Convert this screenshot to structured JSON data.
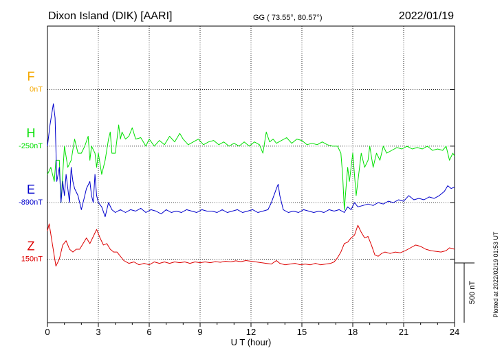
{
  "header": {
    "station": "Dixon Island (DIK)  [AARI]",
    "coords": "GG ( 73.55°,  80.57°)",
    "date": "2022/01/19"
  },
  "plotted_note": "Plotted at 2022/02/19 01:53 UT",
  "colors": {
    "F": "#f5a800",
    "H": "#00e000",
    "E": "#0000cc",
    "Z": "#dd0000",
    "axes": "#000000"
  },
  "chart_data": {
    "type": "line",
    "xlabel": "U T (hour)",
    "xlim": [
      0,
      24
    ],
    "xticks": [
      "0",
      "3",
      "6",
      "9",
      "12",
      "15",
      "18",
      "21",
      "24"
    ],
    "ylim_nT": [
      0,
      2100
    ],
    "scale_bar": {
      "value": 500,
      "label": "500 nT"
    },
    "series": [
      {
        "name": "F",
        "baseline_label": "0nT",
        "baseline_nT": 1650,
        "points": []
      },
      {
        "name": "H",
        "baseline_label": "-250nT",
        "baseline_nT": 1250,
        "points": [
          [
            0,
            1050
          ],
          [
            0.2,
            1100
          ],
          [
            0.4,
            1000
          ],
          [
            0.5,
            1150
          ],
          [
            0.7,
            1150
          ],
          [
            0.8,
            850
          ],
          [
            1.0,
            1250
          ],
          [
            1.2,
            1100
          ],
          [
            1.4,
            1150
          ],
          [
            1.6,
            1300
          ],
          [
            1.8,
            1200
          ],
          [
            2.0,
            1200
          ],
          [
            2.2,
            1250
          ],
          [
            2.4,
            1320
          ],
          [
            2.5,
            1150
          ],
          [
            2.6,
            1250
          ],
          [
            2.8,
            1200
          ],
          [
            2.9,
            1100
          ],
          [
            3.0,
            1200
          ],
          [
            3.2,
            1050
          ],
          [
            3.4,
            1150
          ],
          [
            3.6,
            1300
          ],
          [
            3.7,
            1350
          ],
          [
            3.8,
            1200
          ],
          [
            4.0,
            1200
          ],
          [
            4.2,
            1400
          ],
          [
            4.3,
            1300
          ],
          [
            4.4,
            1350
          ],
          [
            4.6,
            1300
          ],
          [
            4.8,
            1320
          ],
          [
            5.0,
            1380
          ],
          [
            5.2,
            1300
          ],
          [
            5.5,
            1310
          ],
          [
            5.8,
            1250
          ],
          [
            6.0,
            1300
          ],
          [
            6.3,
            1250
          ],
          [
            6.6,
            1290
          ],
          [
            6.9,
            1260
          ],
          [
            7.2,
            1320
          ],
          [
            7.5,
            1280
          ],
          [
            7.8,
            1340
          ],
          [
            8.0,
            1300
          ],
          [
            8.3,
            1260
          ],
          [
            8.6,
            1280
          ],
          [
            8.9,
            1300
          ],
          [
            9.2,
            1260
          ],
          [
            9.5,
            1280
          ],
          [
            9.8,
            1290
          ],
          [
            10.1,
            1260
          ],
          [
            10.4,
            1280
          ],
          [
            10.7,
            1250
          ],
          [
            11.0,
            1270
          ],
          [
            11.3,
            1250
          ],
          [
            11.6,
            1280
          ],
          [
            11.9,
            1250
          ],
          [
            12.2,
            1280
          ],
          [
            12.5,
            1260
          ],
          [
            12.7,
            1200
          ],
          [
            12.9,
            1350
          ],
          [
            13.1,
            1280
          ],
          [
            13.3,
            1300
          ],
          [
            13.5,
            1270
          ],
          [
            13.8,
            1290
          ],
          [
            14.1,
            1310
          ],
          [
            14.4,
            1270
          ],
          [
            14.7,
            1300
          ],
          [
            15.0,
            1290
          ],
          [
            15.3,
            1260
          ],
          [
            15.6,
            1270
          ],
          [
            15.9,
            1260
          ],
          [
            16.2,
            1280
          ],
          [
            16.5,
            1260
          ],
          [
            16.8,
            1250
          ],
          [
            17.1,
            1250
          ],
          [
            17.3,
            1200
          ],
          [
            17.4,
            1050
          ],
          [
            17.5,
            800
          ],
          [
            17.6,
            950
          ],
          [
            17.7,
            1100
          ],
          [
            17.8,
            1000
          ],
          [
            18.0,
            1200
          ],
          [
            18.2,
            900
          ],
          [
            18.3,
            1000
          ],
          [
            18.5,
            1200
          ],
          [
            18.7,
            1100
          ],
          [
            18.9,
            1150
          ],
          [
            19.0,
            1250
          ],
          [
            19.2,
            1100
          ],
          [
            19.4,
            1200
          ],
          [
            19.6,
            1150
          ],
          [
            19.8,
            1250
          ],
          [
            20.0,
            1200
          ],
          [
            20.3,
            1220
          ],
          [
            20.6,
            1240
          ],
          [
            20.9,
            1230
          ],
          [
            21.2,
            1250
          ],
          [
            21.5,
            1230
          ],
          [
            21.8,
            1240
          ],
          [
            22.1,
            1230
          ],
          [
            22.4,
            1250
          ],
          [
            22.7,
            1220
          ],
          [
            23.0,
            1230
          ],
          [
            23.3,
            1220
          ],
          [
            23.5,
            1250
          ],
          [
            23.7,
            1150
          ],
          [
            23.9,
            1200
          ],
          [
            24.0,
            1180
          ]
        ]
      },
      {
        "name": "E",
        "baseline_label": "-890nT",
        "baseline_nT": 850,
        "points": [
          [
            0,
            1250
          ],
          [
            0.15,
            1400
          ],
          [
            0.35,
            1550
          ],
          [
            0.45,
            1450
          ],
          [
            0.55,
            1000
          ],
          [
            0.7,
            1100
          ],
          [
            0.8,
            850
          ],
          [
            0.9,
            1000
          ],
          [
            1.0,
            900
          ],
          [
            1.1,
            1050
          ],
          [
            1.2,
            950
          ],
          [
            1.3,
            850
          ],
          [
            1.4,
            1100
          ],
          [
            1.5,
            1000
          ],
          [
            1.6,
            950
          ],
          [
            1.8,
            900
          ],
          [
            2.0,
            800
          ],
          [
            2.2,
            900
          ],
          [
            2.3,
            950
          ],
          [
            2.5,
            1000
          ],
          [
            2.6,
            900
          ],
          [
            2.7,
            850
          ],
          [
            2.8,
            1050
          ],
          [
            2.9,
            900
          ],
          [
            3.0,
            850
          ],
          [
            3.2,
            820
          ],
          [
            3.4,
            750
          ],
          [
            3.6,
            850
          ],
          [
            3.8,
            800
          ],
          [
            4.0,
            780
          ],
          [
            4.3,
            800
          ],
          [
            4.6,
            780
          ],
          [
            4.9,
            800
          ],
          [
            5.2,
            790
          ],
          [
            5.5,
            810
          ],
          [
            5.8,
            780
          ],
          [
            6.1,
            800
          ],
          [
            6.4,
            790
          ],
          [
            6.7,
            770
          ],
          [
            7.0,
            800
          ],
          [
            7.3,
            780
          ],
          [
            7.6,
            790
          ],
          [
            7.9,
            780
          ],
          [
            8.2,
            800
          ],
          [
            8.5,
            790
          ],
          [
            8.8,
            780
          ],
          [
            9.1,
            800
          ],
          [
            9.4,
            790
          ],
          [
            9.7,
            790
          ],
          [
            10.0,
            780
          ],
          [
            10.3,
            800
          ],
          [
            10.6,
            780
          ],
          [
            10.9,
            790
          ],
          [
            11.2,
            800
          ],
          [
            11.5,
            780
          ],
          [
            11.8,
            790
          ],
          [
            12.1,
            800
          ],
          [
            12.4,
            780
          ],
          [
            12.7,
            790
          ],
          [
            13.0,
            800
          ],
          [
            13.2,
            850
          ],
          [
            13.5,
            950
          ],
          [
            13.6,
            980
          ],
          [
            13.7,
            900
          ],
          [
            13.9,
            800
          ],
          [
            14.2,
            780
          ],
          [
            14.5,
            790
          ],
          [
            14.8,
            780
          ],
          [
            15.1,
            800
          ],
          [
            15.4,
            790
          ],
          [
            15.7,
            780
          ],
          [
            16.0,
            790
          ],
          [
            16.3,
            780
          ],
          [
            16.6,
            800
          ],
          [
            16.9,
            790
          ],
          [
            17.2,
            800
          ],
          [
            17.5,
            780
          ],
          [
            17.7,
            820
          ],
          [
            17.9,
            800
          ],
          [
            18.1,
            850
          ],
          [
            18.3,
            820
          ],
          [
            18.6,
            830
          ],
          [
            18.9,
            840
          ],
          [
            19.2,
            830
          ],
          [
            19.5,
            850
          ],
          [
            19.8,
            840
          ],
          [
            20.1,
            860
          ],
          [
            20.4,
            850
          ],
          [
            20.7,
            870
          ],
          [
            21.0,
            860
          ],
          [
            21.3,
            900
          ],
          [
            21.6,
            870
          ],
          [
            21.9,
            880
          ],
          [
            22.2,
            870
          ],
          [
            22.5,
            890
          ],
          [
            22.8,
            880
          ],
          [
            23.1,
            900
          ],
          [
            23.4,
            930
          ],
          [
            23.6,
            970
          ],
          [
            23.8,
            950
          ],
          [
            24.0,
            960
          ]
        ]
      },
      {
        "name": "Z",
        "baseline_label": "150nT",
        "baseline_nT": 450,
        "points": [
          [
            0,
            650
          ],
          [
            0.1,
            700
          ],
          [
            0.3,
            550
          ],
          [
            0.5,
            400
          ],
          [
            0.7,
            450
          ],
          [
            0.9,
            550
          ],
          [
            1.1,
            580
          ],
          [
            1.3,
            520
          ],
          [
            1.5,
            500
          ],
          [
            1.7,
            520
          ],
          [
            1.9,
            520
          ],
          [
            2.1,
            560
          ],
          [
            2.3,
            600
          ],
          [
            2.5,
            560
          ],
          [
            2.7,
            610
          ],
          [
            2.9,
            660
          ],
          [
            3.1,
            600
          ],
          [
            3.3,
            550
          ],
          [
            3.5,
            560
          ],
          [
            3.7,
            520
          ],
          [
            3.9,
            500
          ],
          [
            4.1,
            500
          ],
          [
            4.3,
            470
          ],
          [
            4.5,
            440
          ],
          [
            4.8,
            420
          ],
          [
            5.1,
            430
          ],
          [
            5.4,
            410
          ],
          [
            5.7,
            420
          ],
          [
            6.0,
            410
          ],
          [
            6.3,
            430
          ],
          [
            6.6,
            420
          ],
          [
            6.9,
            430
          ],
          [
            7.2,
            420
          ],
          [
            7.5,
            430
          ],
          [
            7.8,
            425
          ],
          [
            8.1,
            430
          ],
          [
            8.4,
            420
          ],
          [
            8.7,
            430
          ],
          [
            9.0,
            425
          ],
          [
            9.3,
            430
          ],
          [
            9.6,
            425
          ],
          [
            9.9,
            432
          ],
          [
            10.2,
            428
          ],
          [
            10.5,
            435
          ],
          [
            10.8,
            430
          ],
          [
            11.1,
            438
          ],
          [
            11.4,
            432
          ],
          [
            11.7,
            440
          ],
          [
            12.0,
            435
          ],
          [
            12.3,
            430
          ],
          [
            12.6,
            425
          ],
          [
            12.9,
            420
          ],
          [
            13.2,
            415
          ],
          [
            13.5,
            440
          ],
          [
            13.7,
            420
          ],
          [
            14.0,
            410
          ],
          [
            14.3,
            415
          ],
          [
            14.6,
            420
          ],
          [
            14.9,
            410
          ],
          [
            15.2,
            415
          ],
          [
            15.5,
            410
          ],
          [
            15.8,
            420
          ],
          [
            16.1,
            410
          ],
          [
            16.4,
            415
          ],
          [
            16.7,
            420
          ],
          [
            16.9,
            430
          ],
          [
            17.1,
            460
          ],
          [
            17.3,
            500
          ],
          [
            17.5,
            560
          ],
          [
            17.7,
            570
          ],
          [
            17.9,
            600
          ],
          [
            18.1,
            620
          ],
          [
            18.3,
            690
          ],
          [
            18.5,
            640
          ],
          [
            18.7,
            600
          ],
          [
            18.9,
            610
          ],
          [
            19.1,
            550
          ],
          [
            19.3,
            480
          ],
          [
            19.5,
            470
          ],
          [
            19.7,
            490
          ],
          [
            19.9,
            500
          ],
          [
            20.2,
            490
          ],
          [
            20.5,
            500
          ],
          [
            20.8,
            495
          ],
          [
            21.1,
            510
          ],
          [
            21.4,
            530
          ],
          [
            21.7,
            550
          ],
          [
            22.0,
            540
          ],
          [
            22.3,
            520
          ],
          [
            22.6,
            510
          ],
          [
            22.9,
            505
          ],
          [
            23.2,
            500
          ],
          [
            23.5,
            510
          ],
          [
            23.7,
            530
          ],
          [
            24.0,
            520
          ]
        ]
      }
    ]
  }
}
